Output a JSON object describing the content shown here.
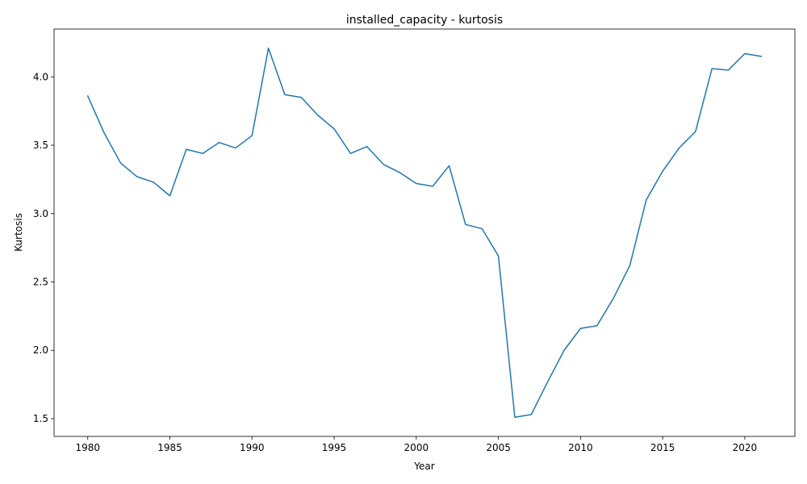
{
  "chart_data": {
    "type": "line",
    "title": "installed_capacity - kurtosis",
    "xlabel": "Year",
    "ylabel": "Kurtosis",
    "xlim": [
      1977.95,
      2023.05
    ],
    "ylim": [
      1.37,
      4.35
    ],
    "x_ticks": [
      1980,
      1985,
      1990,
      1995,
      2000,
      2005,
      2010,
      2015,
      2020
    ],
    "y_ticks": [
      1.5,
      2.0,
      2.5,
      3.0,
      3.5,
      4.0
    ],
    "y_tick_labels": [
      "1.5",
      "2.0",
      "2.5",
      "3.0",
      "3.5",
      "4.0"
    ],
    "grid": false,
    "legend": "none",
    "series": [
      {
        "color": "#1f77b4",
        "x": [
          1980,
          1981,
          1982,
          1983,
          1984,
          1985,
          1986,
          1987,
          1988,
          1989,
          1990,
          1991,
          1992,
          1993,
          1994,
          1995,
          1996,
          1997,
          1998,
          1999,
          2000,
          2001,
          2002,
          2003,
          2004,
          2005,
          2006,
          2007,
          2008,
          2009,
          2010,
          2011,
          2012,
          2013,
          2014,
          2015,
          2016,
          2017,
          2018,
          2019,
          2020,
          2021
        ],
        "values": [
          3.86,
          3.59,
          3.37,
          3.27,
          3.23,
          3.13,
          3.47,
          3.44,
          3.52,
          3.48,
          3.57,
          4.21,
          3.87,
          3.85,
          3.72,
          3.62,
          3.44,
          3.49,
          3.36,
          3.3,
          3.22,
          3.2,
          3.35,
          2.92,
          2.89,
          2.69,
          1.51,
          1.53,
          1.77,
          2.0,
          2.16,
          2.18,
          2.38,
          2.62,
          3.1,
          3.31,
          3.48,
          3.6,
          4.06,
          4.05,
          4.17,
          4.15
        ]
      }
    ]
  }
}
